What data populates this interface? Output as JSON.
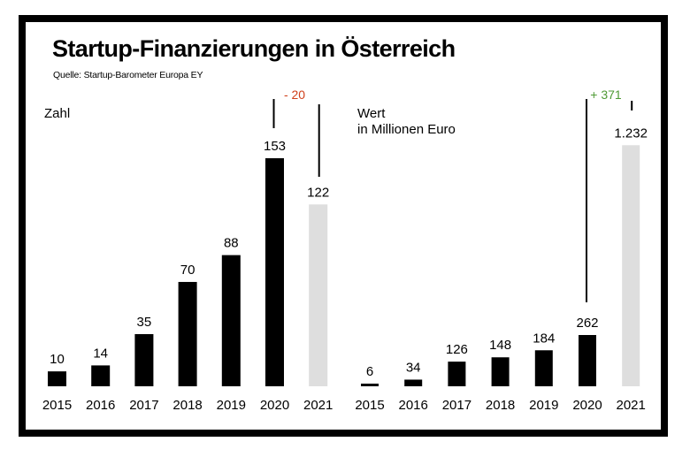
{
  "title": "Startup-Finanzierungen in Österreich",
  "source": "Quelle: Startup-Barometer Europa EY",
  "colors": {
    "bar": "#000000",
    "highlight_bar": "#dedede",
    "negative": "#d0401b",
    "positive": "#4f9a35"
  },
  "chart_data": [
    {
      "type": "bar",
      "label": "Zahl",
      "categories": [
        "2015",
        "2016",
        "2017",
        "2018",
        "2019",
        "2020",
        "2021"
      ],
      "values": [
        10,
        14,
        35,
        70,
        88,
        153,
        122
      ],
      "value_labels": [
        "10",
        "14",
        "35",
        "70",
        "88",
        "153",
        "122"
      ],
      "highlighted": [
        "2021"
      ],
      "change_annotation": {
        "text": "- 20",
        "direction": "negative"
      }
    },
    {
      "type": "bar",
      "label_lines": [
        "Wert",
        "in Millionen Euro"
      ],
      "categories": [
        "2015",
        "2016",
        "2017",
        "2018",
        "2019",
        "2020",
        "2021"
      ],
      "values": [
        6,
        34,
        126,
        148,
        184,
        262,
        1232
      ],
      "value_labels": [
        "6",
        "34",
        "126",
        "148",
        "184",
        "262",
        "1.232"
      ],
      "highlighted": [
        "2021"
      ],
      "change_annotation": {
        "text": "+ 371",
        "direction": "positive"
      }
    }
  ]
}
